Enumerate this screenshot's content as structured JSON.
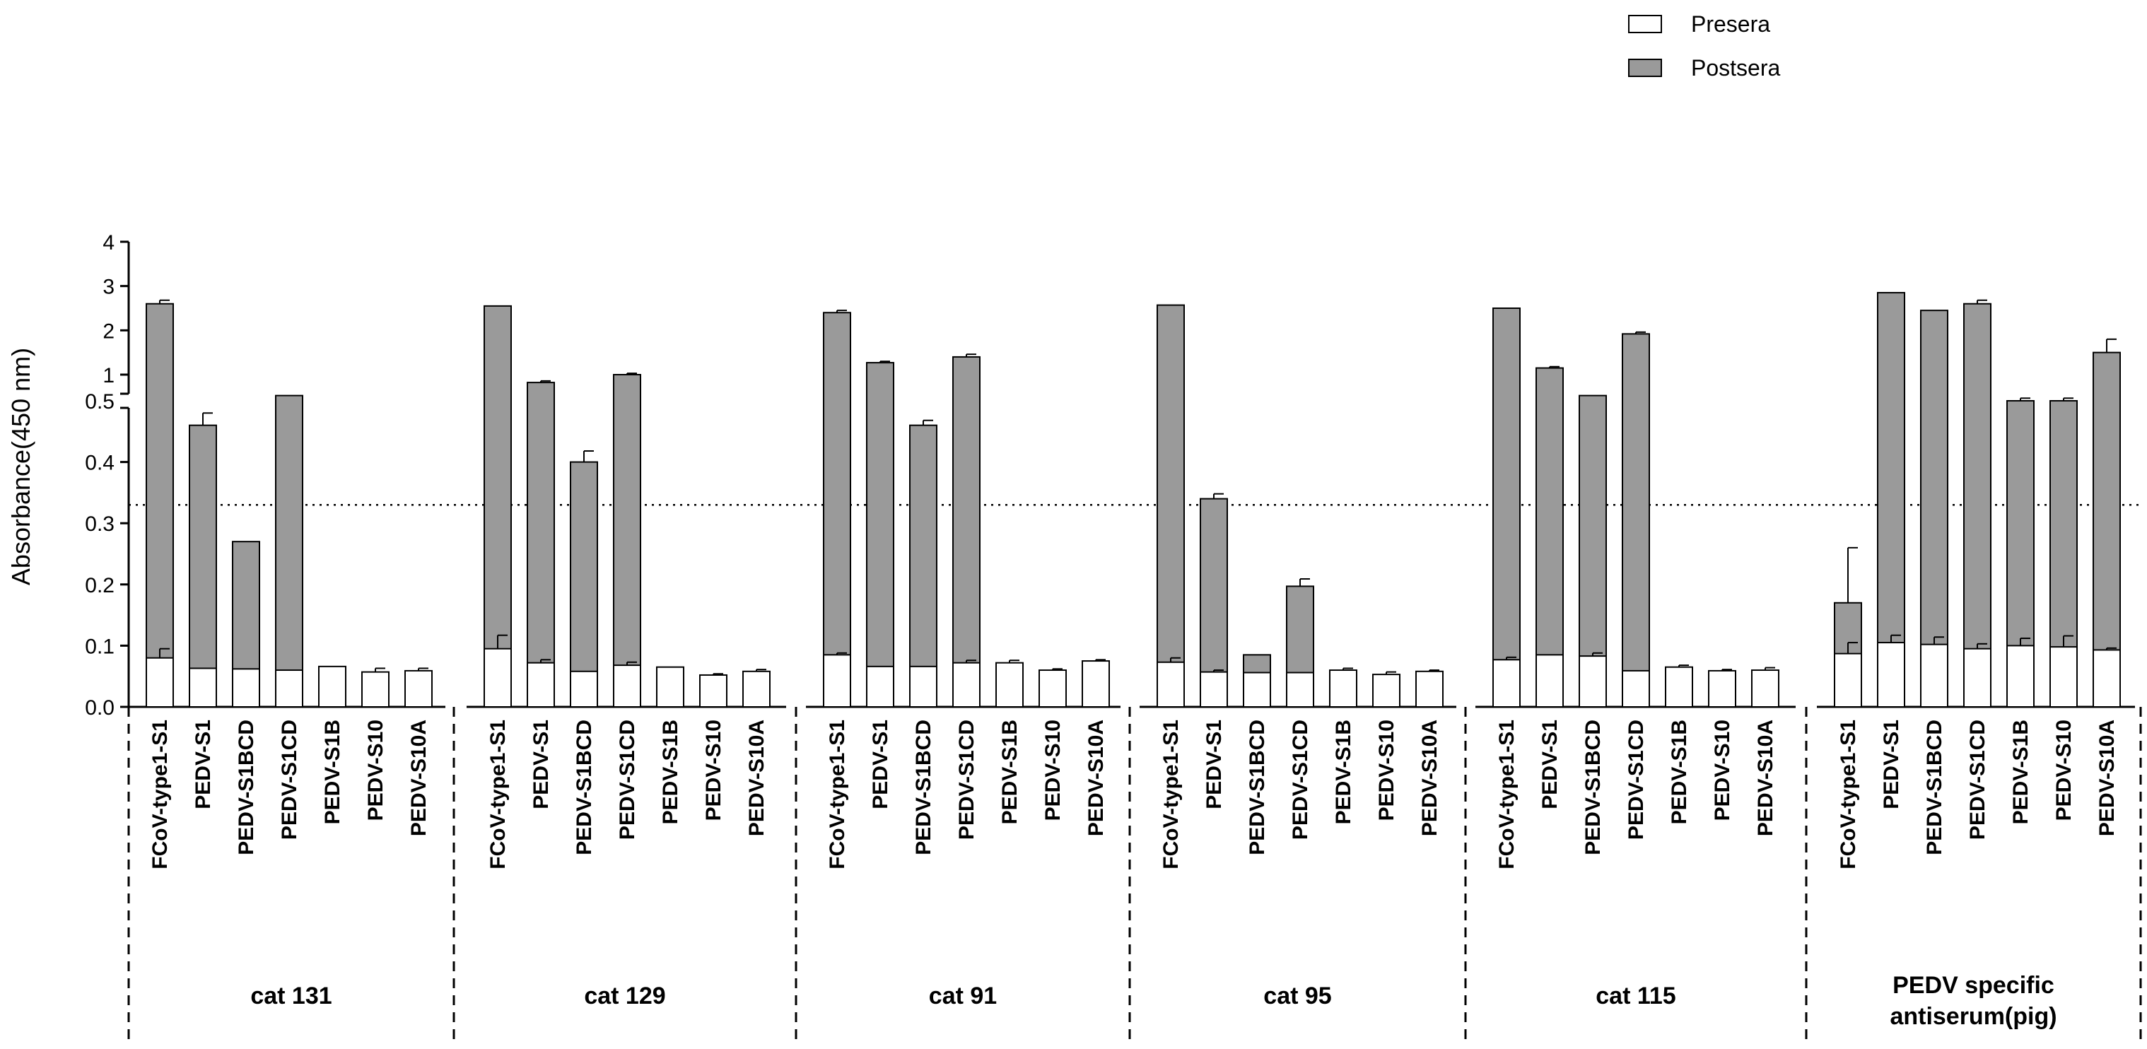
{
  "chart_data": {
    "type": "bar",
    "ylabel": "Absorbance(450 nm)",
    "cutoff": 0.33,
    "y_axis": {
      "lower_range": [
        0,
        0.5
      ],
      "lower_ticks": [
        "0.0",
        "0.1",
        "0.2",
        "0.3",
        "0.4",
        "0.5"
      ],
      "upper_range": [
        0.5,
        4
      ],
      "upper_ticks": [
        "1",
        "2",
        "3",
        "4"
      ],
      "broken_axis": true
    },
    "legend": {
      "position": "top-right",
      "entries": [
        {
          "label": "Presera",
          "color": "#ffffff"
        },
        {
          "label": "Postsera",
          "color": "#9a9a9a"
        }
      ]
    },
    "colors": {
      "presera": "#ffffff",
      "postsera": "#9a9a9a",
      "stroke": "#000000"
    },
    "categories": [
      "FCoV-type1-S1",
      "PEDV-S1",
      "PEDV-S1BCD",
      "PEDV-S1CD",
      "PEDV-S1B",
      "PEDV-S10",
      "PEDV-S10A"
    ],
    "groups": [
      {
        "label": "cat 131",
        "presera": [
          0.08,
          0.063,
          0.062,
          0.06,
          0.066,
          0.057,
          0.059
        ],
        "presera_err": [
          0.015,
          0,
          0,
          0,
          0,
          0.006,
          0.004
        ],
        "postsera": [
          2.6,
          0.46,
          0.27,
          0.6,
          null,
          null,
          null
        ],
        "postsera_err": [
          0.08,
          0.02,
          0,
          0,
          0,
          0,
          0
        ]
      },
      {
        "label": "cat 129",
        "presera": [
          0.095,
          0.072,
          0.058,
          0.068,
          0.065,
          0.052,
          0.058
        ],
        "presera_err": [
          0.022,
          0.005,
          0,
          0.005,
          0,
          0.002,
          0.003
        ],
        "postsera": [
          2.55,
          0.85,
          0.4,
          1.0,
          null,
          null,
          null
        ],
        "postsera_err": [
          0,
          0.03,
          0.018,
          0.03,
          0,
          0,
          0
        ]
      },
      {
        "label": "cat 91",
        "presera": [
          0.085,
          0.066,
          0.066,
          0.072,
          0.072,
          0.06,
          0.075
        ],
        "presera_err": [
          0.003,
          0,
          0,
          0.004,
          0.004,
          0.002,
          0.002
        ],
        "postsera": [
          2.4,
          1.27,
          0.46,
          1.4,
          null,
          null,
          null
        ],
        "postsera_err": [
          0.05,
          0.03,
          0.008,
          0.06,
          0,
          0,
          0
        ]
      },
      {
        "label": "cat 95",
        "presera": [
          0.073,
          0.057,
          0.056,
          0.056,
          0.06,
          0.053,
          0.058
        ],
        "presera_err": [
          0.007,
          0.003,
          0,
          0,
          0.003,
          0.004,
          0.002
        ],
        "postsera": [
          2.57,
          0.34,
          0.085,
          0.197,
          null,
          null,
          null
        ],
        "postsera_err": [
          0,
          0.008,
          0,
          0.012,
          0,
          0,
          0
        ]
      },
      {
        "label": "cat 115",
        "presera": [
          0.077,
          0.085,
          0.083,
          0.059,
          0.065,
          0.059,
          0.06
        ],
        "presera_err": [
          0.004,
          0,
          0.005,
          0,
          0.003,
          0.002,
          0.004
        ],
        "postsera": [
          2.5,
          1.15,
          0.6,
          1.92,
          null,
          null,
          null
        ],
        "postsera_err": [
          0,
          0.03,
          0,
          0.04,
          0,
          0,
          0
        ]
      },
      {
        "label": "PEDV specific antiserum(pig)",
        "label_lines": [
          "PEDV specific",
          "antiserum(pig)"
        ],
        "presera": [
          0.087,
          0.105,
          0.102,
          0.095,
          0.1,
          0.098,
          0.093
        ],
        "presera_err": [
          0.018,
          0.012,
          0.012,
          0.008,
          0.012,
          0.018,
          0.003
        ],
        "postsera": [
          0.17,
          2.85,
          2.45,
          2.6,
          0.5,
          0.5,
          1.5
        ],
        "postsera_err": [
          0.09,
          0,
          0,
          0.08,
          0.05,
          0.05,
          0.3
        ]
      }
    ]
  }
}
